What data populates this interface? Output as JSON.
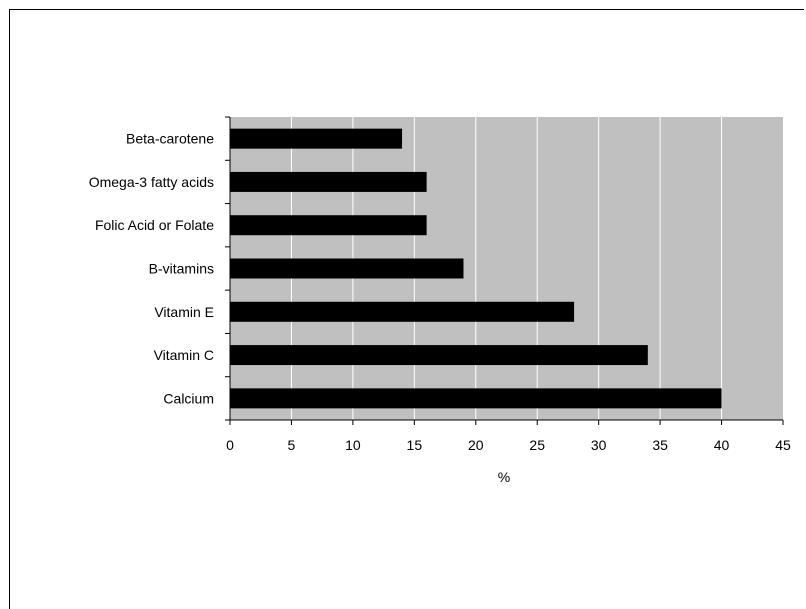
{
  "chart_data": {
    "type": "bar",
    "orientation": "horizontal",
    "categories": [
      "Beta-carotene",
      "Omega-3 fatty acids",
      "Folic Acid or Folate",
      "B-vitamins",
      "Vitamin E",
      "Vitamin C",
      "Calcium"
    ],
    "values": [
      14,
      16,
      16,
      19,
      28,
      34,
      40
    ],
    "xlabel": "%",
    "ylabel": "",
    "title": "",
    "xlim": [
      0,
      45
    ],
    "xticks": [
      "0",
      "5",
      "10",
      "15",
      "20",
      "25",
      "30",
      "35",
      "40",
      "45"
    ],
    "grid": "vertical",
    "colors": {
      "plot_background": "#c0c0c0",
      "bar": "#000000",
      "gridline": "#ffffff"
    }
  }
}
